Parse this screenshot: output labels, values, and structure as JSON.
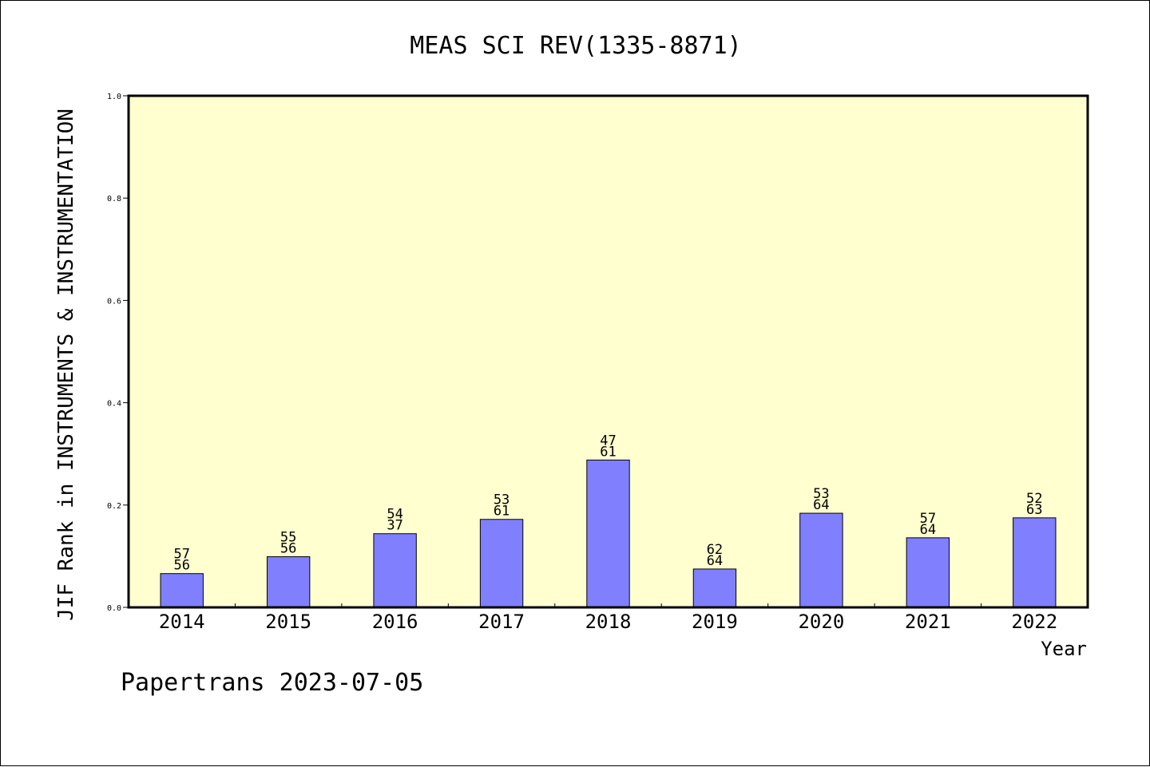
{
  "chart_data": {
    "type": "bar",
    "title": "MEAS SCI REV(1335-8871)",
    "xlabel": "Year",
    "ylabel": "JIF Rank in INSTRUMENTS & INSTRUMENTATION",
    "ylim": [
      0,
      1.0
    ],
    "yticks": [
      "0.0",
      "0.2",
      "0.4",
      "0.6",
      "0.8",
      "1.0"
    ],
    "categories": [
      "2014",
      "2015",
      "2016",
      "2017",
      "2018",
      "2019",
      "2020",
      "2021",
      "2022"
    ],
    "values": [
      0.066,
      0.099,
      0.144,
      0.172,
      0.288,
      0.075,
      0.184,
      0.136,
      0.175
    ],
    "labels_top": [
      "57",
      "55",
      "54",
      "53",
      "47",
      "62",
      "53",
      "57",
      "52"
    ],
    "labels_bottom": [
      "56",
      "56",
      "37",
      "61",
      "61",
      "64",
      "64",
      "64",
      "63"
    ],
    "grid": false,
    "colors": {
      "plot_background": "#ffffd0",
      "bar_fill": "#8080ff",
      "bar_stroke": "#000000"
    }
  },
  "footer": "Papertrans 2023-07-05"
}
